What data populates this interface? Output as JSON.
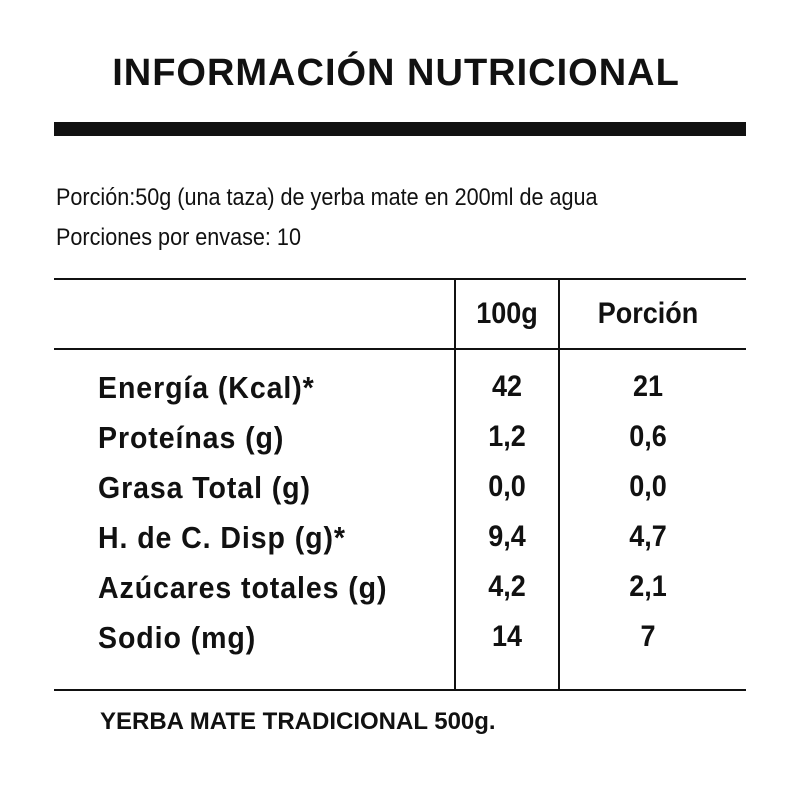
{
  "header": {
    "title": "INFORMACIÓN NUTRICIONAL"
  },
  "serving": {
    "portion": "Porción:50g (una taza) de yerba mate en 200ml de agua",
    "servings": "Porciones por envase: 10"
  },
  "table": {
    "columns": [
      "100g",
      "Porción"
    ],
    "rows": [
      [
        "Energía (Kcal)*",
        "42",
        "21"
      ],
      [
        "Proteínas (g)",
        "1,2",
        "0,6"
      ],
      [
        "Grasa Total (g)",
        "0,0",
        "0,0"
      ],
      [
        "H. de C. Disp (g)*",
        "9,4",
        "4,7"
      ],
      [
        "Azúcares totales (g)",
        "4,2",
        "2,1"
      ],
      [
        "Sodio (mg)",
        "14",
        "7"
      ]
    ]
  },
  "footer": {
    "product": "YERBA MATE TRADICIONAL 500g."
  }
}
